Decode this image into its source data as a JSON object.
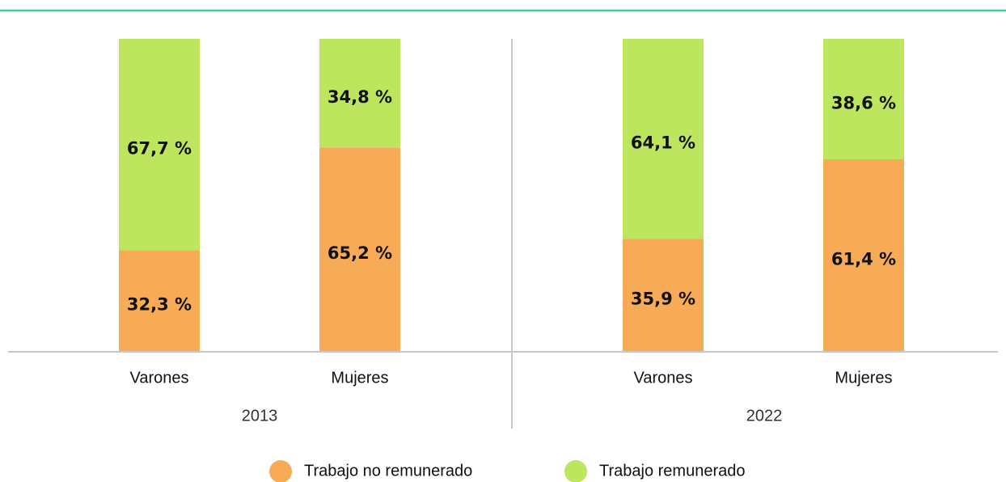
{
  "chart_data": {
    "type": "stacked_bar",
    "categories": [
      "Varones",
      "Mujeres",
      "Varones",
      "Mujeres"
    ],
    "groups": [
      "2013",
      "2022"
    ],
    "series": [
      {
        "name": "Trabajo no remunerado",
        "color": "#f8ab57",
        "values": [
          32.3,
          65.2,
          35.9,
          61.4
        ],
        "value_labels": [
          "32,3 %",
          "65,2 %",
          "35,9 %",
          "61,4 %"
        ]
      },
      {
        "name": "Trabajo remunerado",
        "color": "#bde55d",
        "values": [
          67.7,
          34.8,
          64.1,
          38.6
        ],
        "value_labels": [
          "67,7 %",
          "34,8 %",
          "64,1 %",
          "38,6 %"
        ]
      }
    ],
    "ylim": [
      0,
      100
    ],
    "legend": "bottom"
  }
}
